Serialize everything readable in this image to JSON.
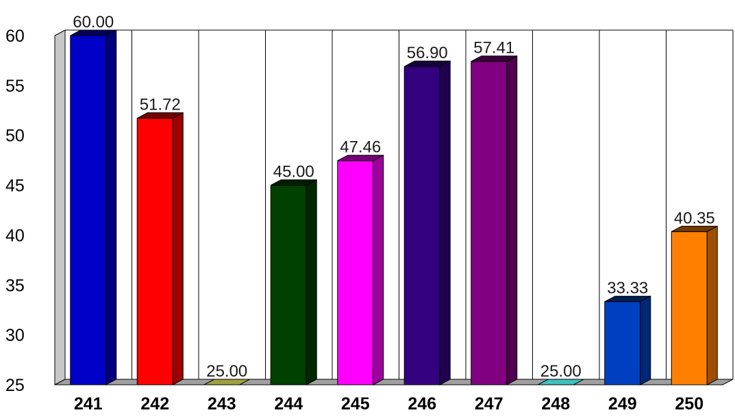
{
  "chart_data": {
    "type": "bar",
    "categories": [
      "241",
      "242",
      "243",
      "244",
      "245",
      "246",
      "247",
      "248",
      "249",
      "250"
    ],
    "values": [
      60.0,
      51.72,
      25.0,
      45.0,
      47.46,
      56.9,
      57.41,
      25.0,
      33.33,
      40.35
    ],
    "data_labels": [
      "60.00",
      "51.72",
      "25.00",
      "45.00",
      "47.46",
      "56.90",
      "57.41",
      "25.00",
      "33.33",
      "40.35"
    ],
    "colors": [
      "#0000c8",
      "#ff0000",
      "#a0a040",
      "#004000",
      "#ff00ff",
      "#330080",
      "#800080",
      "#40c0c0",
      "#0040c0",
      "#ff8000"
    ],
    "yticks": [
      "25",
      "30",
      "35",
      "40",
      "45",
      "50",
      "55",
      "60"
    ],
    "ylim": [
      25,
      60
    ],
    "title": "",
    "xlabel": "",
    "ylabel": "",
    "grid": "vertical",
    "style": "3d"
  }
}
